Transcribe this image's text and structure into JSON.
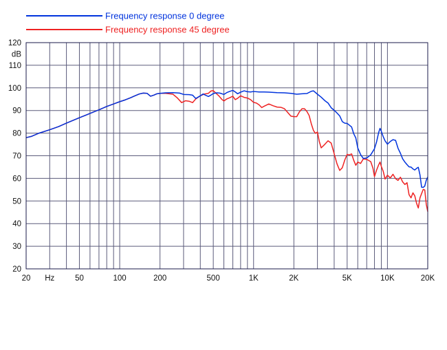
{
  "chart_data": {
    "type": "line",
    "title": "",
    "xlabel": "Hz",
    "ylabel": "dB",
    "xscale": "log",
    "xlim": [
      20,
      20000
    ],
    "ylim": [
      20,
      120
    ],
    "grid": true,
    "legend_position": "top-left",
    "y_ticks": [
      "20",
      "30",
      "40",
      "50",
      "60",
      "70",
      "80",
      "90",
      "100",
      "110",
      "120"
    ],
    "x_tick_labels": [
      {
        "value": 20,
        "label": "20"
      },
      {
        "value": 30,
        "label": "Hz"
      },
      {
        "value": 50,
        "label": "50"
      },
      {
        "value": 100,
        "label": "100"
      },
      {
        "value": 200,
        "label": "200"
      },
      {
        "value": 500,
        "label": "500"
      },
      {
        "value": 1000,
        "label": "1K"
      },
      {
        "value": 2000,
        "label": "2K"
      },
      {
        "value": 5000,
        "label": "5K"
      },
      {
        "value": 10000,
        "label": "10K"
      },
      {
        "value": 20000,
        "label": "20K"
      }
    ],
    "x_gridlines": [
      20,
      30,
      40,
      50,
      60,
      70,
      80,
      90,
      100,
      200,
      300,
      400,
      500,
      600,
      700,
      800,
      900,
      1000,
      2000,
      3000,
      4000,
      5000,
      6000,
      7000,
      8000,
      9000,
      10000,
      20000
    ],
    "series": [
      {
        "name": "Frequency response 0 degree",
        "color": "#0033dd",
        "points": [
          [
            20,
            78
          ],
          [
            22,
            78.6
          ],
          [
            25,
            80
          ],
          [
            30,
            81.5
          ],
          [
            35,
            82.9
          ],
          [
            40,
            84.4
          ],
          [
            50,
            86.8
          ],
          [
            60,
            88.7
          ],
          [
            70,
            90.3
          ],
          [
            80,
            91.8
          ],
          [
            90,
            92.9
          ],
          [
            100,
            93.9
          ],
          [
            110,
            94.7
          ],
          [
            120,
            95.6
          ],
          [
            130,
            96.5
          ],
          [
            140,
            97.3
          ],
          [
            150,
            97.7
          ],
          [
            160,
            97.6
          ],
          [
            170,
            96.3
          ],
          [
            180,
            96.8
          ],
          [
            190,
            97.4
          ],
          [
            200,
            97.6
          ],
          [
            220,
            97.8
          ],
          [
            250,
            97.9
          ],
          [
            280,
            97.7
          ],
          [
            300,
            97.1
          ],
          [
            330,
            97
          ],
          [
            350,
            96.8
          ],
          [
            370,
            95.3
          ],
          [
            400,
            96.5
          ],
          [
            420,
            97.3
          ],
          [
            440,
            96.7
          ],
          [
            460,
            96.2
          ],
          [
            480,
            96.8
          ],
          [
            500,
            97.5
          ],
          [
            530,
            97.8
          ],
          [
            560,
            97.7
          ],
          [
            600,
            97.1
          ],
          [
            630,
            97.9
          ],
          [
            660,
            98.4
          ],
          [
            700,
            98.9
          ],
          [
            730,
            98.2
          ],
          [
            760,
            97.4
          ],
          [
            800,
            98.1
          ],
          [
            850,
            98.7
          ],
          [
            900,
            98.3
          ],
          [
            950,
            98.2
          ],
          [
            1000,
            98.4
          ],
          [
            1100,
            98.2
          ],
          [
            1200,
            98.2
          ],
          [
            1300,
            98.1
          ],
          [
            1500,
            97.9
          ],
          [
            1700,
            97.8
          ],
          [
            1900,
            97.6
          ],
          [
            2100,
            97.2
          ],
          [
            2300,
            97.4
          ],
          [
            2500,
            97.5
          ],
          [
            2700,
            98.5
          ],
          [
            2800,
            98.7
          ],
          [
            3000,
            97.2
          ],
          [
            3200,
            95.9
          ],
          [
            3400,
            94.4
          ],
          [
            3600,
            93.3
          ],
          [
            3800,
            91.2
          ],
          [
            4000,
            90.1
          ],
          [
            4200,
            88.9
          ],
          [
            4400,
            87.6
          ],
          [
            4600,
            85.1
          ],
          [
            4800,
            84.4
          ],
          [
            5000,
            84.3
          ],
          [
            5200,
            83.5
          ],
          [
            5400,
            82.7
          ],
          [
            5600,
            79.7
          ],
          [
            5800,
            77.9
          ],
          [
            6000,
            73.5
          ],
          [
            6300,
            70.5
          ],
          [
            6600,
            68.8
          ],
          [
            7000,
            69
          ],
          [
            7500,
            70.4
          ],
          [
            8000,
            73.1
          ],
          [
            8300,
            76.2
          ],
          [
            8600,
            80.3
          ],
          [
            8800,
            82.1
          ],
          [
            9000,
            80.8
          ],
          [
            9300,
            78.4
          ],
          [
            9600,
            76.6
          ],
          [
            10000,
            75.1
          ],
          [
            10500,
            76.3
          ],
          [
            11000,
            77.1
          ],
          [
            11500,
            76.8
          ],
          [
            12000,
            73.3
          ],
          [
            12500,
            71.1
          ],
          [
            13000,
            68.6
          ],
          [
            13500,
            67.2
          ],
          [
            14000,
            66.1
          ],
          [
            14500,
            65.1
          ],
          [
            15000,
            65
          ],
          [
            15500,
            64.2
          ],
          [
            16000,
            63.7
          ],
          [
            16500,
            64.4
          ],
          [
            17000,
            64.9
          ],
          [
            17500,
            61.5
          ],
          [
            18000,
            56.1
          ],
          [
            18500,
            56
          ],
          [
            19000,
            56.6
          ],
          [
            19500,
            59.2
          ],
          [
            20000,
            60.6
          ]
        ]
      },
      {
        "name": "Frequency response 45 degree",
        "color": "#ee2222",
        "points": [
          [
            20,
            78
          ],
          [
            22,
            78.6
          ],
          [
            25,
            80
          ],
          [
            30,
            81.5
          ],
          [
            35,
            82.9
          ],
          [
            40,
            84.4
          ],
          [
            50,
            86.8
          ],
          [
            60,
            88.7
          ],
          [
            70,
            90.3
          ],
          [
            80,
            91.8
          ],
          [
            90,
            92.9
          ],
          [
            100,
            93.9
          ],
          [
            110,
            94.7
          ],
          [
            120,
            95.6
          ],
          [
            130,
            96.5
          ],
          [
            140,
            97.3
          ],
          [
            150,
            97.7
          ],
          [
            160,
            97.6
          ],
          [
            170,
            96.3
          ],
          [
            180,
            96.8
          ],
          [
            190,
            97.4
          ],
          [
            200,
            97.6
          ],
          [
            220,
            97.6
          ],
          [
            250,
            97.2
          ],
          [
            270,
            95.5
          ],
          [
            290,
            93.5
          ],
          [
            310,
            94.3
          ],
          [
            330,
            94.1
          ],
          [
            350,
            93.5
          ],
          [
            370,
            95.1
          ],
          [
            400,
            96.5
          ],
          [
            430,
            97.3
          ],
          [
            460,
            97.6
          ],
          [
            480,
            98.6
          ],
          [
            500,
            98.8
          ],
          [
            520,
            97.8
          ],
          [
            550,
            96.5
          ],
          [
            580,
            94.9
          ],
          [
            600,
            94.2
          ],
          [
            630,
            95.1
          ],
          [
            660,
            95.6
          ],
          [
            700,
            96.3
          ],
          [
            730,
            94.8
          ],
          [
            760,
            95.4
          ],
          [
            800,
            96.5
          ],
          [
            850,
            95.8
          ],
          [
            900,
            95.5
          ],
          [
            950,
            94.8
          ],
          [
            1000,
            93.6
          ],
          [
            1050,
            93.3
          ],
          [
            1100,
            92.5
          ],
          [
            1150,
            91.3
          ],
          [
            1200,
            91.9
          ],
          [
            1300,
            92.9
          ],
          [
            1400,
            92.1
          ],
          [
            1500,
            91.5
          ],
          [
            1600,
            91.4
          ],
          [
            1700,
            90.8
          ],
          [
            1800,
            89.1
          ],
          [
            1900,
            87.5
          ],
          [
            2000,
            87.3
          ],
          [
            2100,
            87.3
          ],
          [
            2200,
            89.4
          ],
          [
            2300,
            90.8
          ],
          [
            2400,
            90.8
          ],
          [
            2500,
            89.6
          ],
          [
            2600,
            87.8
          ],
          [
            2700,
            84.1
          ],
          [
            2800,
            81.2
          ],
          [
            2900,
            79.9
          ],
          [
            3000,
            80.5
          ],
          [
            3100,
            76.2
          ],
          [
            3200,
            73.5
          ],
          [
            3400,
            75
          ],
          [
            3600,
            76.6
          ],
          [
            3800,
            75.6
          ],
          [
            4000,
            70.9
          ],
          [
            4200,
            66.4
          ],
          [
            4400,
            63.5
          ],
          [
            4600,
            64.7
          ],
          [
            4800,
            68.1
          ],
          [
            5000,
            70.6
          ],
          [
            5200,
            70.4
          ],
          [
            5400,
            70.8
          ],
          [
            5600,
            68
          ],
          [
            5800,
            65.8
          ],
          [
            6000,
            67.2
          ],
          [
            6300,
            66.6
          ],
          [
            6600,
            68.6
          ],
          [
            7000,
            68.4
          ],
          [
            7500,
            67.4
          ],
          [
            7800,
            64.4
          ],
          [
            8000,
            60.8
          ],
          [
            8300,
            63.7
          ],
          [
            8600,
            66
          ],
          [
            8800,
            67.2
          ],
          [
            9000,
            65.3
          ],
          [
            9300,
            63.1
          ],
          [
            9600,
            59.7
          ],
          [
            10000,
            61.4
          ],
          [
            10500,
            60.2
          ],
          [
            11000,
            61.8
          ],
          [
            11500,
            59.9
          ],
          [
            12000,
            59.1
          ],
          [
            12500,
            60.5
          ],
          [
            13000,
            58.4
          ],
          [
            13500,
            57.3
          ],
          [
            14000,
            58.1
          ],
          [
            14500,
            52.8
          ],
          [
            15000,
            51.4
          ],
          [
            15500,
            53.6
          ],
          [
            16000,
            52.3
          ],
          [
            16500,
            49
          ],
          [
            17000,
            46.9
          ],
          [
            17500,
            51.4
          ],
          [
            18000,
            53.3
          ],
          [
            18500,
            55.1
          ],
          [
            19000,
            54.9
          ],
          [
            19500,
            48.5
          ],
          [
            20000,
            45.3
          ]
        ]
      }
    ]
  }
}
